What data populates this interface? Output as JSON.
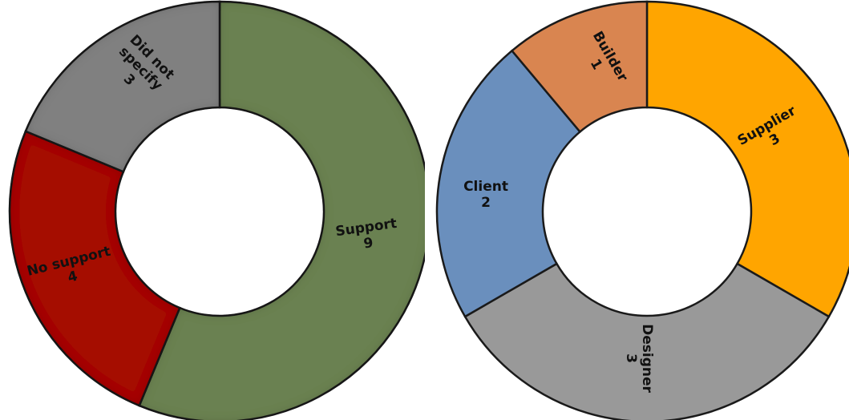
{
  "chart_data": [
    {
      "type": "pie",
      "title": "",
      "categories": [
        "Support",
        "No support",
        "Did not specify"
      ],
      "values": [
        9,
        4,
        3
      ],
      "colors": [
        "#6b8151",
        "#a50d05",
        "#808080"
      ],
      "labels": [
        {
          "name": "Support",
          "value": "9"
        },
        {
          "name": "No support",
          "value": "4"
        },
        {
          "name": "Did not specify",
          "value": "3"
        }
      ],
      "label_lines": [
        [
          "Support",
          "9"
        ],
        [
          "No support",
          "4"
        ],
        [
          "Did not",
          "specify",
          "3"
        ]
      ],
      "donut": true,
      "start_angle_deg": 0,
      "direction": "clockwise"
    },
    {
      "type": "pie",
      "title": "",
      "categories": [
        "Supplier",
        "Designer",
        "Client",
        "Builder"
      ],
      "values": [
        3,
        3,
        2,
        1
      ],
      "colors": [
        "#ffa500",
        "#999999",
        "#6a8fbd",
        "#d98550"
      ],
      "labels": [
        {
          "name": "Supplier",
          "value": "3"
        },
        {
          "name": "Designer",
          "value": "3"
        },
        {
          "name": "Client",
          "value": "2"
        },
        {
          "name": "Builder",
          "value": "1"
        }
      ],
      "label_lines": [
        [
          "Supplier",
          "3"
        ],
        [
          "Designer",
          "3"
        ],
        [
          "Client",
          "2"
        ],
        [
          "Builder",
          "1"
        ]
      ],
      "donut": true,
      "start_angle_deg": 0,
      "direction": "clockwise"
    }
  ]
}
